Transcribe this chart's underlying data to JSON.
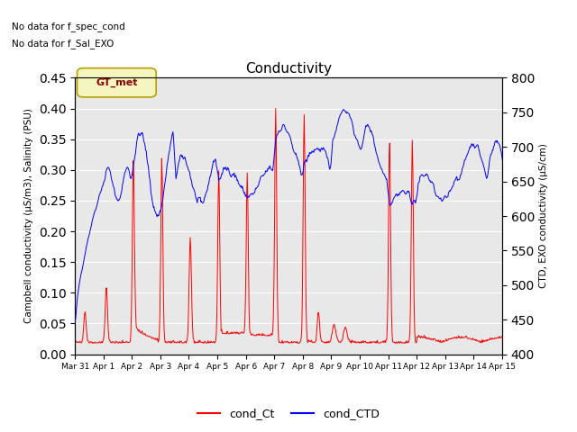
{
  "title": "Conductivity",
  "ylabel_left": "Campbell conductivity (μS/m3), Salinity (PSU)",
  "ylabel_right": "CTD, EXO conductivity (μS/cm)",
  "ylim_left": [
    0.0,
    0.45
  ],
  "ylim_right": [
    400,
    800
  ],
  "yticks_left": [
    0.0,
    0.05,
    0.1,
    0.15,
    0.2,
    0.25,
    0.3,
    0.35,
    0.4,
    0.45
  ],
  "yticks_right": [
    400,
    450,
    500,
    550,
    600,
    650,
    700,
    750,
    800
  ],
  "xticklabels": [
    "Mar 31",
    "Apr 1",
    "Apr 2",
    "Apr 3",
    "Apr 4",
    "Apr 5",
    "Apr 6",
    "Apr 7",
    "Apr 8",
    "Apr 9",
    "Apr 10",
    "Apr 11",
    "Apr 12",
    "Apr 13",
    "Apr 14",
    "Apr 15"
  ],
  "annotation_text1": "No data for f_spec_cond",
  "annotation_text2": "No data for f_Sal_EXO",
  "gt_met_label": "GT_met",
  "legend_entries": [
    "cond_Ct",
    "cond_CTD"
  ],
  "legend_colors": [
    "#ff0000",
    "#0000ff"
  ],
  "background_color": "#e8e8e8",
  "figure_bg": "#ffffff",
  "grid_color": "#ffffff",
  "red_line_color": "#ff0000",
  "blue_line_color": "#0000ff",
  "figsize": [
    6.4,
    4.8
  ],
  "dpi": 100
}
